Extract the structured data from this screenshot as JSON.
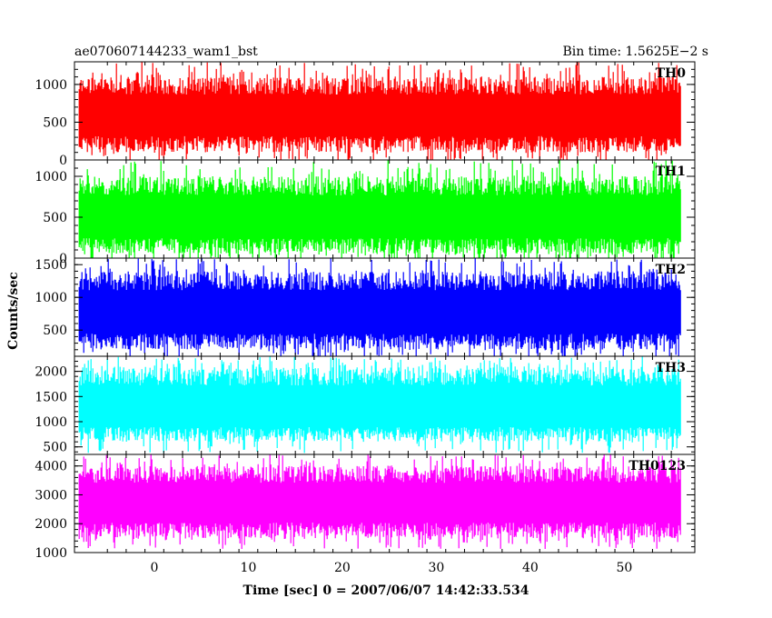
{
  "header": {
    "left_title": "ae070607144233_wam1_bst",
    "right_title": "Bin time: 1.5625E−2 s"
  },
  "chart_data": {
    "type": "line",
    "xlabel": "Time [sec] 0 = 2007/06/07 14:42:33.534",
    "ylabel": "Counts/sec",
    "xlim": [
      -8.5,
      57.5
    ],
    "x_data_range": [
      -8,
      56
    ],
    "x_ticks": [
      0,
      10,
      20,
      30,
      40,
      50
    ],
    "x_tick_labels": [
      "0",
      "10",
      "20",
      "30",
      "40",
      "50"
    ],
    "grid": false,
    "panels": [
      {
        "name": "TH0",
        "color": "#ff0000",
        "ylim": [
          0,
          1300
        ],
        "y_ticks": [
          0,
          500,
          1000
        ],
        "y_tick_labels": [
          "0",
          "500",
          "1000"
        ],
        "mean": 580,
        "typical_range": [
          100,
          1100
        ],
        "max": 1300
      },
      {
        "name": "TH1",
        "color": "#00ff00",
        "ylim": [
          0,
          1200
        ],
        "y_ticks": [
          0,
          500,
          1000
        ],
        "y_tick_labels": [
          "0",
          "500",
          "1000"
        ],
        "mean": 480,
        "typical_range": [
          50,
          1000
        ],
        "max": 1200
      },
      {
        "name": "TH2",
        "color": "#0000ff",
        "ylim": [
          100,
          1600
        ],
        "y_ticks": [
          500,
          1000,
          1500
        ],
        "y_tick_labels": [
          "500",
          "1000",
          "1500"
        ],
        "mean": 750,
        "typical_range": [
          200,
          1400
        ],
        "max": 1600
      },
      {
        "name": "TH3",
        "color": "#00ffff",
        "ylim": [
          350,
          2300
        ],
        "y_ticks": [
          500,
          1000,
          1500,
          2000
        ],
        "y_tick_labels": [
          "500",
          "1000",
          "1500",
          "2000"
        ],
        "mean": 1250,
        "typical_range": [
          600,
          2100
        ],
        "max": 2300
      },
      {
        "name": "TH0123",
        "color": "#ff00ff",
        "ylim": [
          1000,
          4400
        ],
        "y_ticks": [
          1000,
          2000,
          3000,
          4000
        ],
        "y_tick_labels": [
          "1000",
          "2000",
          "3000",
          "4000"
        ],
        "mean": 2700,
        "typical_range": [
          1500,
          4000
        ],
        "max": 4400
      }
    ]
  }
}
